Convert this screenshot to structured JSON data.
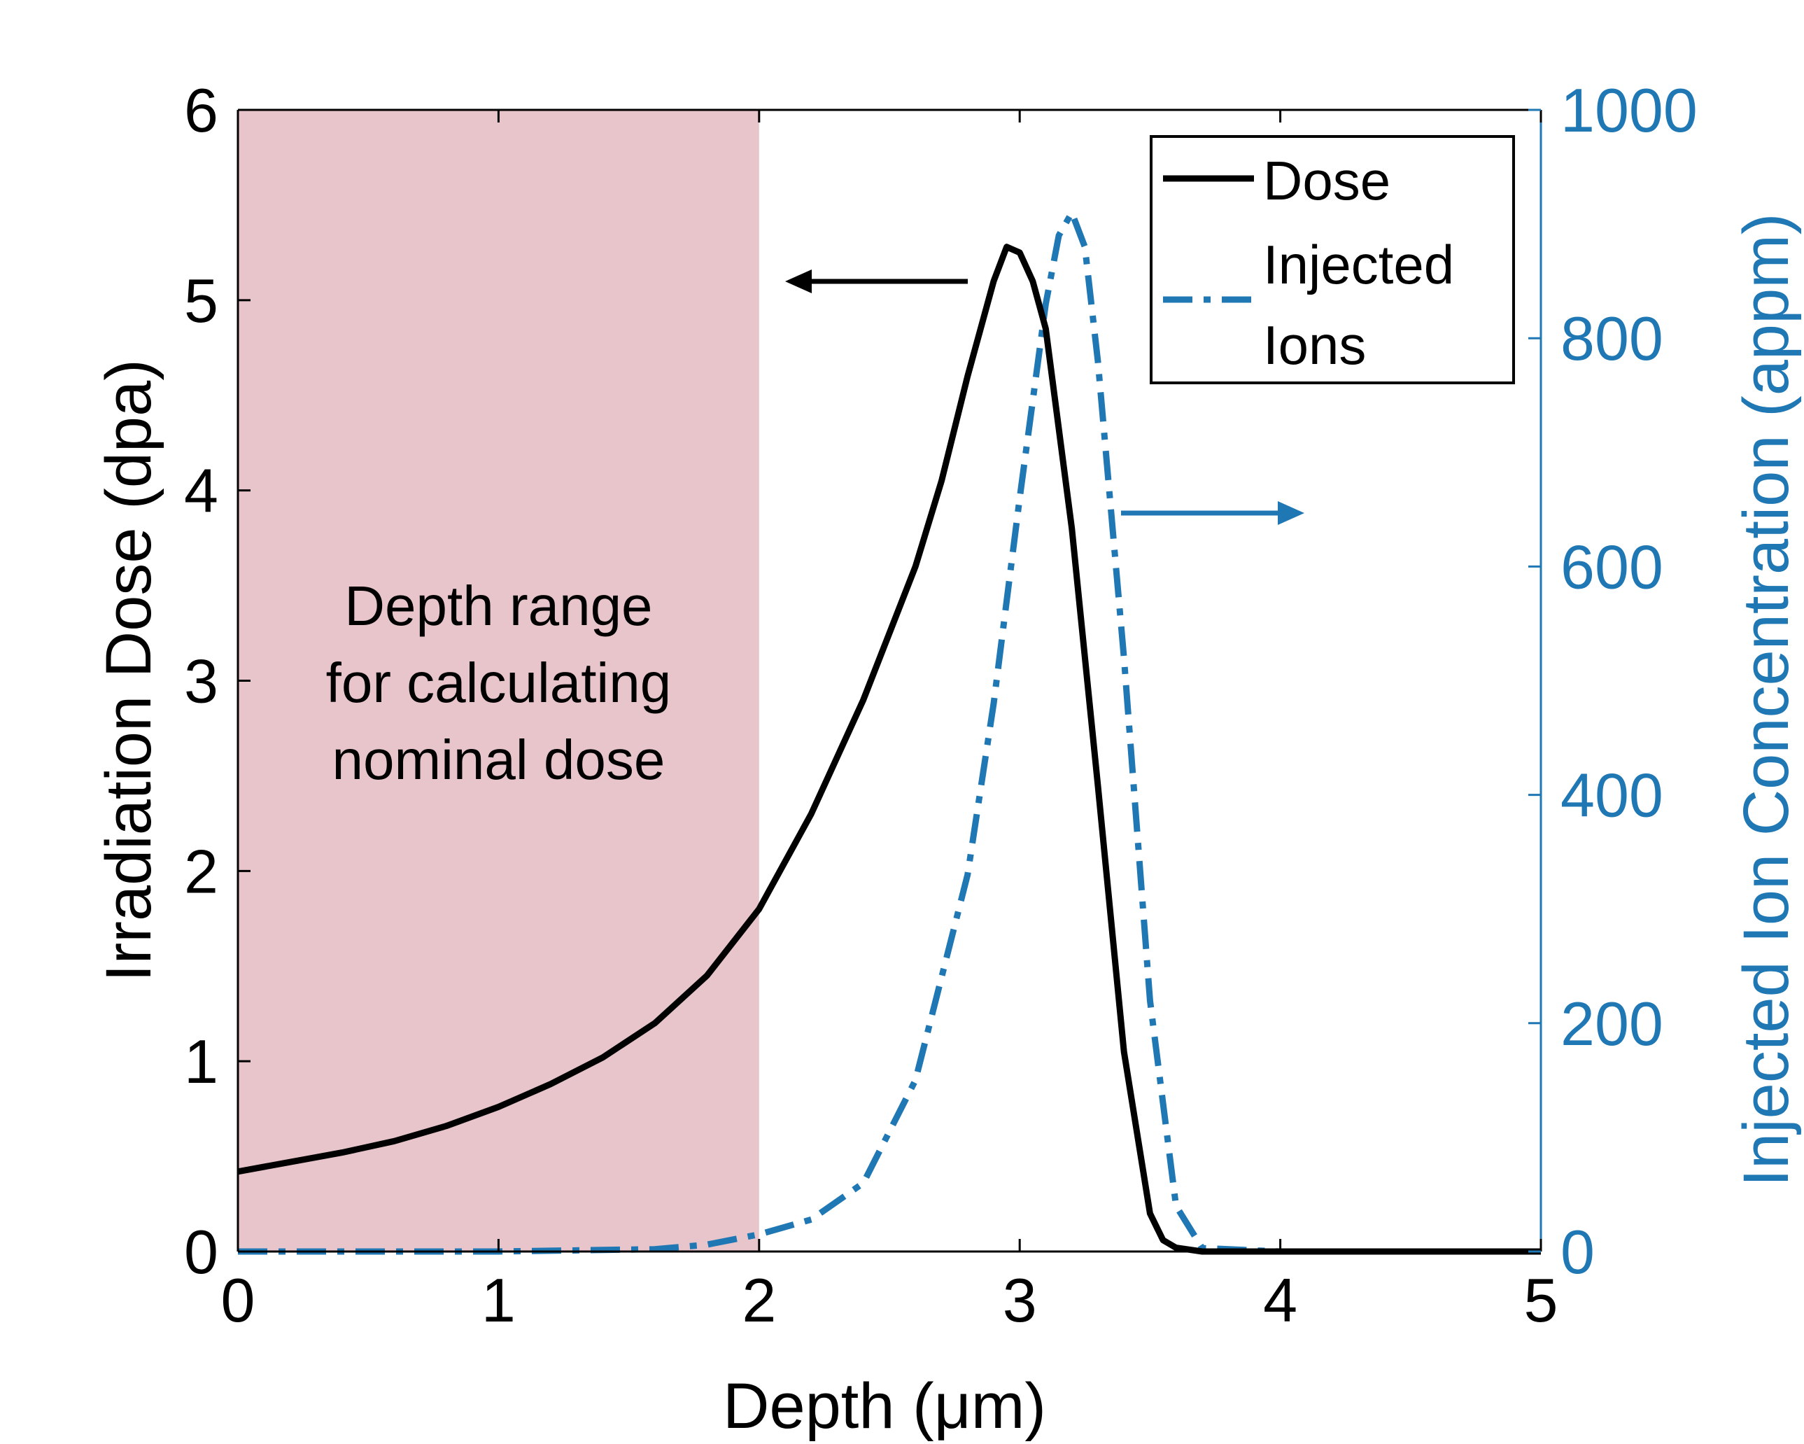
{
  "chart_data": {
    "type": "line",
    "xlabel": "Depth (μm)",
    "ylabel_left": "Irradiation Dose (dpa)",
    "ylabel_right": "Injected Ion Concentration (appm)",
    "xlim": [
      0,
      5
    ],
    "ylim_left": [
      0,
      6
    ],
    "ylim_right": [
      0,
      1000
    ],
    "xticks": [
      "0",
      "1",
      "2",
      "3",
      "4",
      "5"
    ],
    "yticks_left": [
      "0",
      "1",
      "2",
      "3",
      "4",
      "5",
      "6"
    ],
    "yticks_right": [
      "0",
      "200",
      "400",
      "600",
      "800",
      "1000"
    ],
    "grid": false,
    "legend_position": "top-right",
    "legend": {
      "dose": "Dose",
      "ions_line1": "Injected",
      "ions_line2": "Ions"
    },
    "shaded_region": {
      "x_range": [
        0,
        2
      ],
      "color": "#e8c5cb",
      "text_lines": [
        "Depth range",
        "for calculating",
        "nominal dose"
      ]
    },
    "colors": {
      "dose": "#000000",
      "ions": "#1f77b4",
      "right_axis": "#1f77b4"
    },
    "series": [
      {
        "name": "Dose",
        "axis": "left",
        "style": "solid",
        "x": [
          0,
          0.2,
          0.4,
          0.6,
          0.8,
          1.0,
          1.2,
          1.4,
          1.6,
          1.8,
          2.0,
          2.2,
          2.4,
          2.6,
          2.7,
          2.8,
          2.9,
          2.95,
          3.0,
          3.05,
          3.1,
          3.2,
          3.3,
          3.4,
          3.5,
          3.55,
          3.6,
          3.7,
          4.0,
          5.0
        ],
        "y": [
          0.42,
          0.47,
          0.52,
          0.58,
          0.66,
          0.76,
          0.88,
          1.02,
          1.2,
          1.45,
          1.8,
          2.3,
          2.9,
          3.6,
          4.05,
          4.6,
          5.1,
          5.28,
          5.25,
          5.1,
          4.85,
          3.8,
          2.45,
          1.05,
          0.2,
          0.06,
          0.02,
          0,
          0,
          0
        ]
      },
      {
        "name": "Injected Ions",
        "axis": "right",
        "style": "dash-dot",
        "x": [
          0,
          1.0,
          1.6,
          1.8,
          2.0,
          2.2,
          2.4,
          2.6,
          2.8,
          2.9,
          3.0,
          3.1,
          3.15,
          3.2,
          3.25,
          3.3,
          3.4,
          3.5,
          3.6,
          3.7,
          4.0,
          5.0
        ],
        "y": [
          0,
          0,
          2,
          6,
          15,
          28,
          60,
          150,
          330,
          480,
          660,
          830,
          890,
          910,
          880,
          780,
          520,
          220,
          40,
          3,
          0,
          0
        ]
      }
    ]
  }
}
